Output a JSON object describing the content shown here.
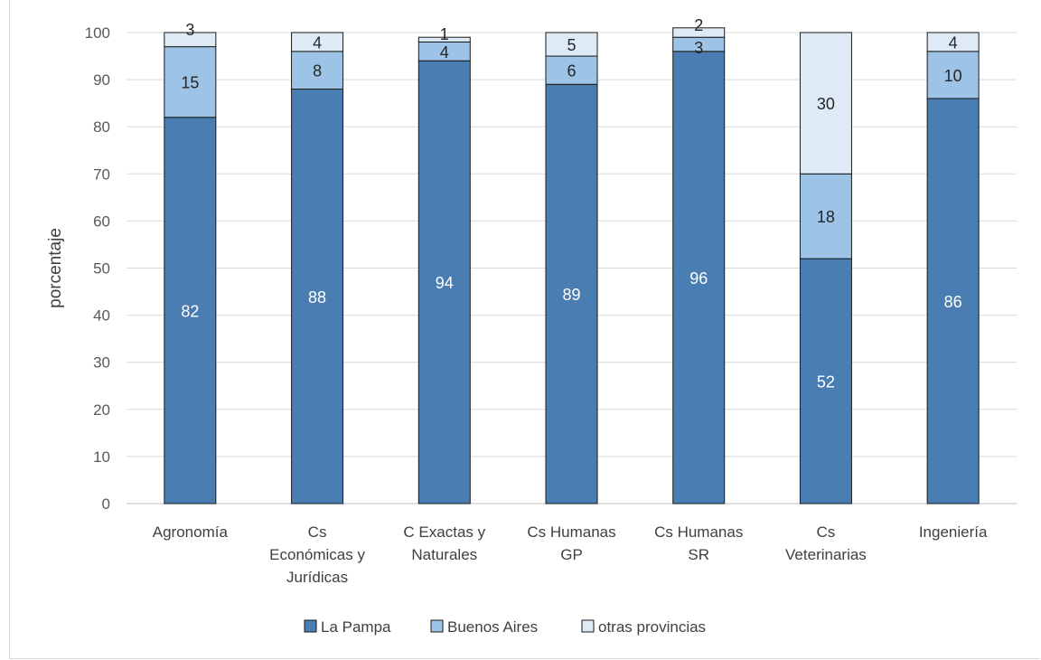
{
  "chart_data": {
    "type": "bar",
    "stacked": true,
    "categories": [
      [
        "Agronomía"
      ],
      [
        "Cs",
        "Económicas y",
        "Jurídicas"
      ],
      [
        "C Exactas y",
        "Naturales"
      ],
      [
        "Cs Humanas",
        "GP"
      ],
      [
        "Cs Humanas",
        "SR"
      ],
      [
        "Cs",
        "Veterinarias"
      ],
      [
        "Ingeniería"
      ]
    ],
    "series": [
      {
        "name": "La Pampa",
        "values": [
          82,
          88,
          94,
          89,
          96,
          52,
          86
        ],
        "labels": [
          "82",
          "88",
          "94",
          "89",
          "96",
          "52",
          "86"
        ]
      },
      {
        "name": "Buenos Aires",
        "values": [
          15,
          8,
          4,
          6,
          3,
          18,
          10
        ],
        "labels": [
          "15",
          "8",
          "4",
          "6",
          "3",
          "18",
          "10"
        ]
      },
      {
        "name": "otras provincias",
        "values": [
          3,
          4,
          1,
          5,
          2,
          30,
          4
        ],
        "labels": [
          "3",
          "4",
          "1",
          "5",
          "2",
          "30",
          "4"
        ]
      }
    ],
    "ylabel": "porcentaje",
    "xlabel": "",
    "ylim": [
      0,
      100
    ],
    "yticks": [
      0,
      10,
      20,
      30,
      40,
      50,
      60,
      70,
      80,
      90,
      100
    ],
    "grid": true,
    "legend_position": "bottom",
    "colors": [
      "#4a7db1",
      "#9dc3e6",
      "#deebf7"
    ]
  }
}
